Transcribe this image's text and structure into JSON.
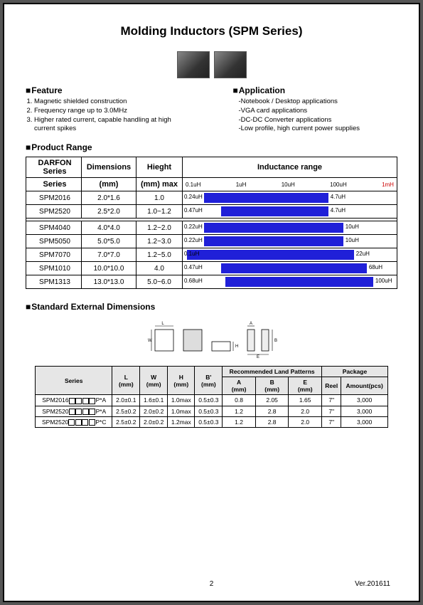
{
  "title": "Molding Inductors (SPM Series)",
  "feature": {
    "heading": "Feature",
    "items": [
      "Magnetic shielded construction",
      "Frequency range up to 3.0MHz",
      "Higher rated current, capable handling at high current spikes"
    ]
  },
  "application": {
    "heading": "Application",
    "items": [
      "-Notebook / Desktop applications",
      "-VGA card applications",
      "-DC-DC Converter applications",
      "-Low profile, high current power supplies"
    ]
  },
  "product_range": {
    "heading": "Product Range",
    "headers": {
      "series": "DARFON Series",
      "dim": "Dimensions",
      "hgt": "Hieght",
      "range": "Inductance range",
      "dim_unit": "(mm)",
      "hgt_unit": "(mm) max"
    },
    "ticks": [
      "0.1uH",
      "1uH",
      "10uH",
      "100uH",
      "1mH"
    ],
    "rows": [
      {
        "series": "SPM2016",
        "dim": "2.0*1.6",
        "hgt": "1.0",
        "left_label": "0.24uH",
        "right_label": "4.7uH",
        "bar_left_pct": 10,
        "bar_width_pct": 58
      },
      {
        "series": "SPM2520",
        "dim": "2.5*2.0",
        "hgt": "1.0~1.2",
        "left_label": "0.47uH",
        "right_label": "4.7uH",
        "bar_left_pct": 18,
        "bar_width_pct": 50
      },
      {
        "series": "SPM4040",
        "dim": "4.0*4.0",
        "hgt": "1.2~2.0",
        "left_label": "0.22uH",
        "right_label": "10uH",
        "bar_left_pct": 10,
        "bar_width_pct": 65
      },
      {
        "series": "SPM5050",
        "dim": "5.0*5.0",
        "hgt": "1.2~3.0",
        "left_label": "0.22uH",
        "right_label": "10uH",
        "bar_left_pct": 10,
        "bar_width_pct": 65
      },
      {
        "series": "SPM7070",
        "dim": "7.0*7.0",
        "hgt": "1.2~5.0",
        "left_label": "0.1uH",
        "right_label": "22uH",
        "bar_left_pct": 2,
        "bar_width_pct": 78
      },
      {
        "series": "SPM1010",
        "dim": "10.0*10.0",
        "hgt": "4.0",
        "left_label": "0.47uH",
        "right_label": "68uH",
        "bar_left_pct": 18,
        "bar_width_pct": 68
      },
      {
        "series": "SPM1313",
        "dim": "13.0*13.0",
        "hgt": "5.0~6.0",
        "left_label": "0.68uH",
        "right_label": "100uH",
        "bar_left_pct": 20,
        "bar_width_pct": 69
      }
    ],
    "bar_color": "#2020d8"
  },
  "std_dims": {
    "heading": "Standard External Dimensions",
    "headers": {
      "series": "Series",
      "L": "L (mm)",
      "W": "W (mm)",
      "H": "H (mm)",
      "Bp": "B' (mm)",
      "land": "Recommended Land Patterns",
      "A": "A (mm)",
      "B": "B (mm)",
      "E": "E (mm)",
      "pkg": "Package",
      "reel": "Reel",
      "amt": "Amount(pcs)"
    },
    "rows": [
      {
        "series": "SPM2016",
        "suffix": "P*A",
        "L": "2.0±0.1",
        "W": "1.6±0.1",
        "H": "1.0max",
        "Bp": "0.5±0.3",
        "A": "0.8",
        "B": "2.05",
        "E": "1.65",
        "reel": "7\"",
        "amt": "3,000"
      },
      {
        "series": "SPM2520",
        "suffix": "P*A",
        "L": "2.5±0.2",
        "W": "2.0±0.2",
        "H": "1.0max",
        "Bp": "0.5±0.3",
        "A": "1.2",
        "B": "2.8",
        "E": "2.0",
        "reel": "7\"",
        "amt": "3,000"
      },
      {
        "series": "SPM2520",
        "suffix": "P*C",
        "L": "2.5±0.2",
        "W": "2.0±0.2",
        "H": "1.2max",
        "Bp": "0.5±0.3",
        "A": "1.2",
        "B": "2.8",
        "E": "2.0",
        "reel": "7\"",
        "amt": "3,000"
      }
    ]
  },
  "footer": {
    "page": "2",
    "version": "Ver.201611"
  }
}
